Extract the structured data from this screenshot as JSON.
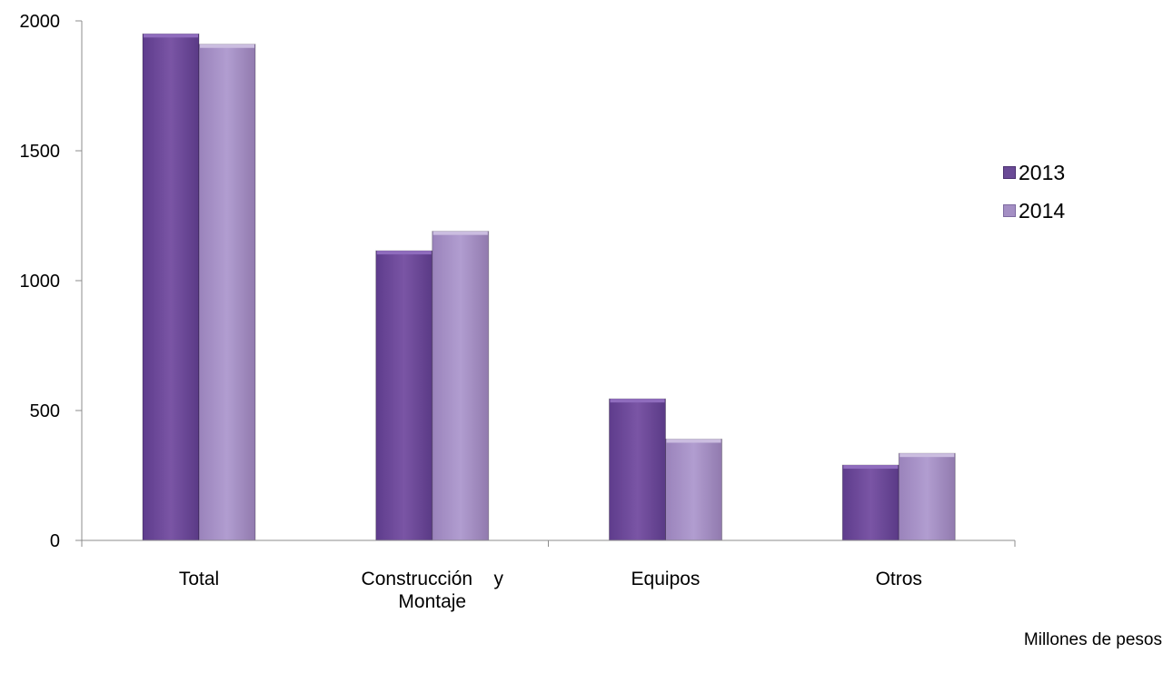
{
  "chart_data": {
    "type": "bar",
    "categories": [
      "Total",
      "Construcción y Montaje",
      "Equipos",
      "Otros"
    ],
    "category_label_lines": [
      [
        "Total"
      ],
      [
        "Construcción    y",
        "Montaje"
      ],
      [
        "Equipos"
      ],
      [
        "Otros"
      ]
    ],
    "series": [
      {
        "name": "2013",
        "values": [
          1950,
          1115,
          545,
          290
        ],
        "color": "#7a55a5"
      },
      {
        "name": "2014",
        "values": [
          1910,
          1190,
          390,
          335
        ],
        "color": "#ad97cc"
      }
    ],
    "ylim": [
      0,
      2000
    ],
    "yticks": [
      0,
      500,
      1000,
      1500,
      2000
    ],
    "legend_position": "right",
    "grid": false
  },
  "caption": "Millones de pesos"
}
